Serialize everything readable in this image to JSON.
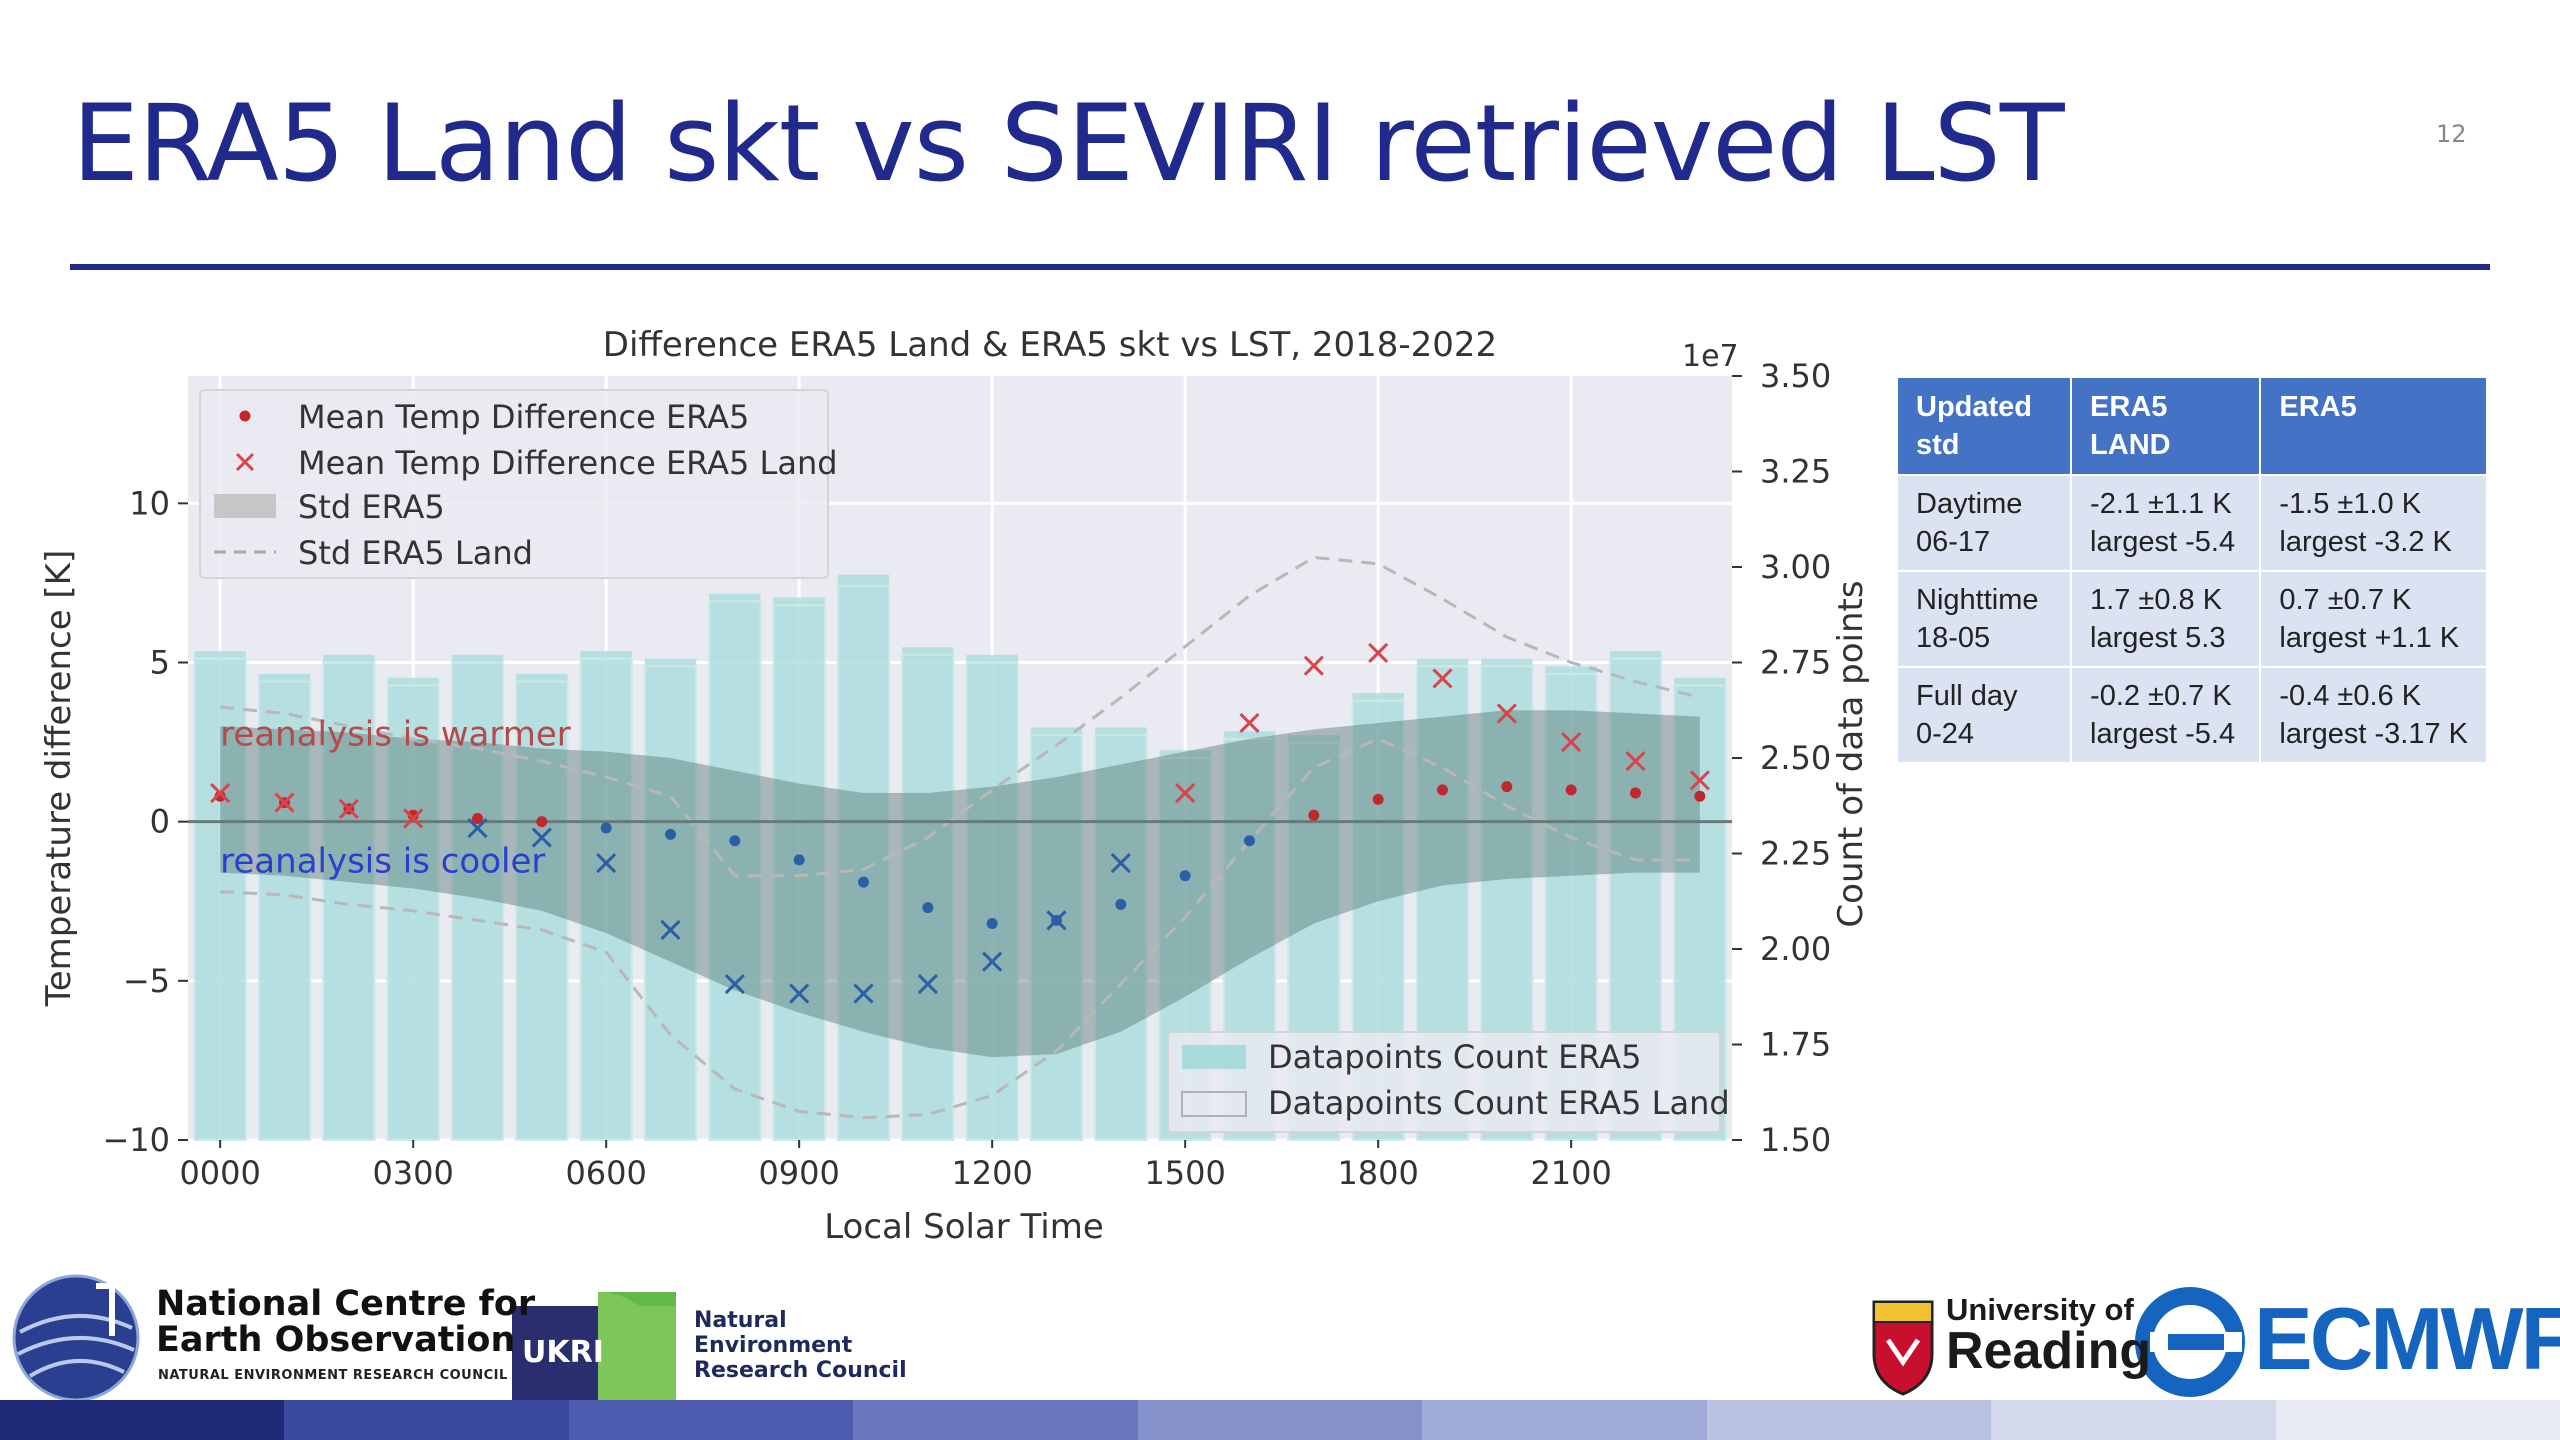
{
  "slide": {
    "title": "ERA5 Land skt vs SEVIRI retrieved LST",
    "page_number": "12"
  },
  "colors": {
    "title_blue": "#1f2a8c",
    "bar_teal": "#a8dcdc",
    "band_grey": "#5a7a78",
    "era5_red": "#c0282d",
    "era5_land_red": "#d9444a",
    "cooler_blue": "#2a5fa8",
    "table_header": "#4472c4",
    "table_cell": "#dbe2f1",
    "ecmwf_blue": "#1565c0"
  },
  "chart_data": {
    "type": "scatter",
    "title": "Difference ERA5 Land & ERA5 skt vs LST, 2018-2022",
    "xlabel": "Local Solar Time",
    "ylabel": "Temperature difference [K]",
    "y2label": "Count of data points",
    "y2_multiplier": "1e7",
    "x_tick_labels": [
      "0000",
      "0300",
      "0600",
      "0900",
      "1200",
      "1500",
      "1800",
      "2100"
    ],
    "y_tick_labels": [
      "10",
      "5",
      "0",
      "−5",
      "−10"
    ],
    "y2_tick_labels": [
      "3.50",
      "3.25",
      "3.00",
      "2.75",
      "2.50",
      "2.25",
      "2.00",
      "1.75",
      "1.50"
    ],
    "xlim": [
      -0.5,
      23.5
    ],
    "ylim": [
      -10,
      14
    ],
    "y2lim": [
      1.5,
      3.5
    ],
    "grid": true,
    "x_hours": [
      0,
      1,
      2,
      3,
      4,
      5,
      6,
      7,
      8,
      9,
      10,
      11,
      12,
      13,
      14,
      15,
      16,
      17,
      18,
      19,
      20,
      21,
      22,
      23
    ],
    "series": [
      {
        "name": "Mean Temp Difference ERA5",
        "marker": "dot",
        "values": [
          0.8,
          0.6,
          0.4,
          0.2,
          0.1,
          0.0,
          -0.2,
          -0.4,
          -0.6,
          -1.2,
          -1.9,
          -2.7,
          -3.2,
          -3.1,
          -2.6,
          -1.7,
          -0.6,
          0.2,
          0.7,
          1.0,
          1.1,
          1.0,
          0.9,
          0.8
        ]
      },
      {
        "name": "Mean Temp Difference ERA5 Land",
        "marker": "x",
        "values": [
          0.9,
          0.6,
          0.4,
          0.1,
          -0.2,
          -0.5,
          -1.3,
          -3.4,
          -5.1,
          -5.4,
          -5.4,
          -5.1,
          -4.4,
          -3.1,
          -1.3,
          0.9,
          3.1,
          4.9,
          5.3,
          4.5,
          3.4,
          2.5,
          1.9,
          1.3
        ]
      },
      {
        "name": "Std ERA5",
        "kind": "band",
        "lower": [
          -1.6,
          -1.7,
          -1.9,
          -2.1,
          -2.4,
          -2.8,
          -3.5,
          -4.4,
          -5.3,
          -6.0,
          -6.6,
          -7.1,
          -7.4,
          -7.3,
          -6.6,
          -5.5,
          -4.3,
          -3.2,
          -2.5,
          -2.0,
          -1.8,
          -1.7,
          -1.6,
          -1.6
        ],
        "upper": [
          3.0,
          2.9,
          2.8,
          2.6,
          2.5,
          2.3,
          2.2,
          2.0,
          1.6,
          1.2,
          0.9,
          0.9,
          1.1,
          1.4,
          1.8,
          2.2,
          2.6,
          2.9,
          3.1,
          3.3,
          3.5,
          3.5,
          3.4,
          3.3
        ]
      },
      {
        "name": "Std ERA5 Land",
        "kind": "dashed",
        "upper": [
          3.6,
          3.4,
          3.0,
          2.6,
          2.3,
          1.9,
          1.4,
          0.8,
          -1.7,
          -1.7,
          -1.5,
          -0.5,
          1.0,
          2.4,
          3.9,
          5.5,
          7.1,
          8.3,
          8.1,
          7.0,
          5.8,
          5.0,
          4.4,
          3.9
        ],
        "lower": [
          -2.2,
          -2.3,
          -2.6,
          -2.8,
          -3.1,
          -3.4,
          -4.1,
          -6.7,
          -8.4,
          -9.1,
          -9.3,
          -9.2,
          -8.6,
          -7.2,
          -5.1,
          -3.0,
          -0.6,
          1.7,
          2.6,
          1.7,
          0.5,
          -0.5,
          -1.2,
          -1.2
        ]
      },
      {
        "name": "Datapoints Count ERA5",
        "kind": "bar",
        "axis": "y2",
        "values": [
          2.78,
          2.72,
          2.77,
          2.71,
          2.77,
          2.72,
          2.78,
          2.76,
          2.93,
          2.92,
          2.98,
          2.79,
          2.77,
          2.58,
          2.58,
          2.52,
          2.57,
          2.56,
          2.67,
          2.76,
          2.76,
          2.74,
          2.78,
          2.71
        ]
      },
      {
        "name": "Datapoints Count ERA5 Land",
        "kind": "bar-outline",
        "axis": "y2",
        "values": [
          2.76,
          2.7,
          2.75,
          2.69,
          2.75,
          2.7,
          2.76,
          2.74,
          2.91,
          2.9,
          2.95,
          2.77,
          2.75,
          2.56,
          2.56,
          2.5,
          2.55,
          2.54,
          2.65,
          2.74,
          2.74,
          2.72,
          2.76,
          2.69
        ]
      }
    ],
    "annotations": [
      {
        "text": "reanalysis is warmer",
        "x": 0,
        "y": 2.4,
        "color": "#b44a4a"
      },
      {
        "text": "reanalysis is cooler",
        "x": 0,
        "y": -1.6,
        "color": "#2a3fd0"
      }
    ],
    "legend_top": [
      "Mean Temp Difference ERA5",
      "Mean Temp Difference ERA5 Land",
      "Std ERA5",
      "Std ERA5 Land"
    ],
    "legend_top_placement": "top-left",
    "legend_bottom": [
      "Datapoints Count ERA5",
      "Datapoints Count ERA5 Land"
    ],
    "legend_bottom_placement": "bottom-right"
  },
  "table": {
    "headers": [
      "Updated std",
      "ERA5 LAND",
      "ERA5"
    ],
    "rows": [
      {
        "label_1": "Daytime",
        "label_2": "06-17",
        "land_1": "-2.1 ±1.1 K",
        "land_2": "largest -5.4",
        "era5_1": "-1.5 ±1.0 K",
        "era5_2": "largest -3.2 K"
      },
      {
        "label_1": "Nighttime",
        "label_2": "18-05",
        "land_1": "1.7 ±0.8 K",
        "land_2": "largest 5.3",
        "era5_1": "0.7  ±0.7 K",
        "era5_2": "largest +1.1 K"
      },
      {
        "label_1": "Full day",
        "label_2": "0-24",
        "land_1": "-0.2  ±0.7 K",
        "land_2": "largest -5.4",
        "era5_1": "-0.4 ±0.6 K",
        "era5_2": "largest -3.17 K"
      }
    ]
  },
  "footer": {
    "nceo_line1": "National Centre for",
    "nceo_line2": "Earth Observation",
    "nceo_sub": "NATURAL ENVIRONMENT RESEARCH COUNCIL",
    "ukri": "UKRI",
    "nerc_line1": "Natural",
    "nerc_line2": "Environment",
    "nerc_line3": "Research Council",
    "reading_line1": "University of",
    "reading_line2": "Reading",
    "ecmwf": "ECMWF",
    "band_colors": [
      "#1f2a78",
      "#3a4aa0",
      "#4e5db0",
      "#6a78c0",
      "#8592cc",
      "#a0aad8",
      "#bac2e2",
      "#d3d8ec",
      "#e8ebf5"
    ]
  }
}
